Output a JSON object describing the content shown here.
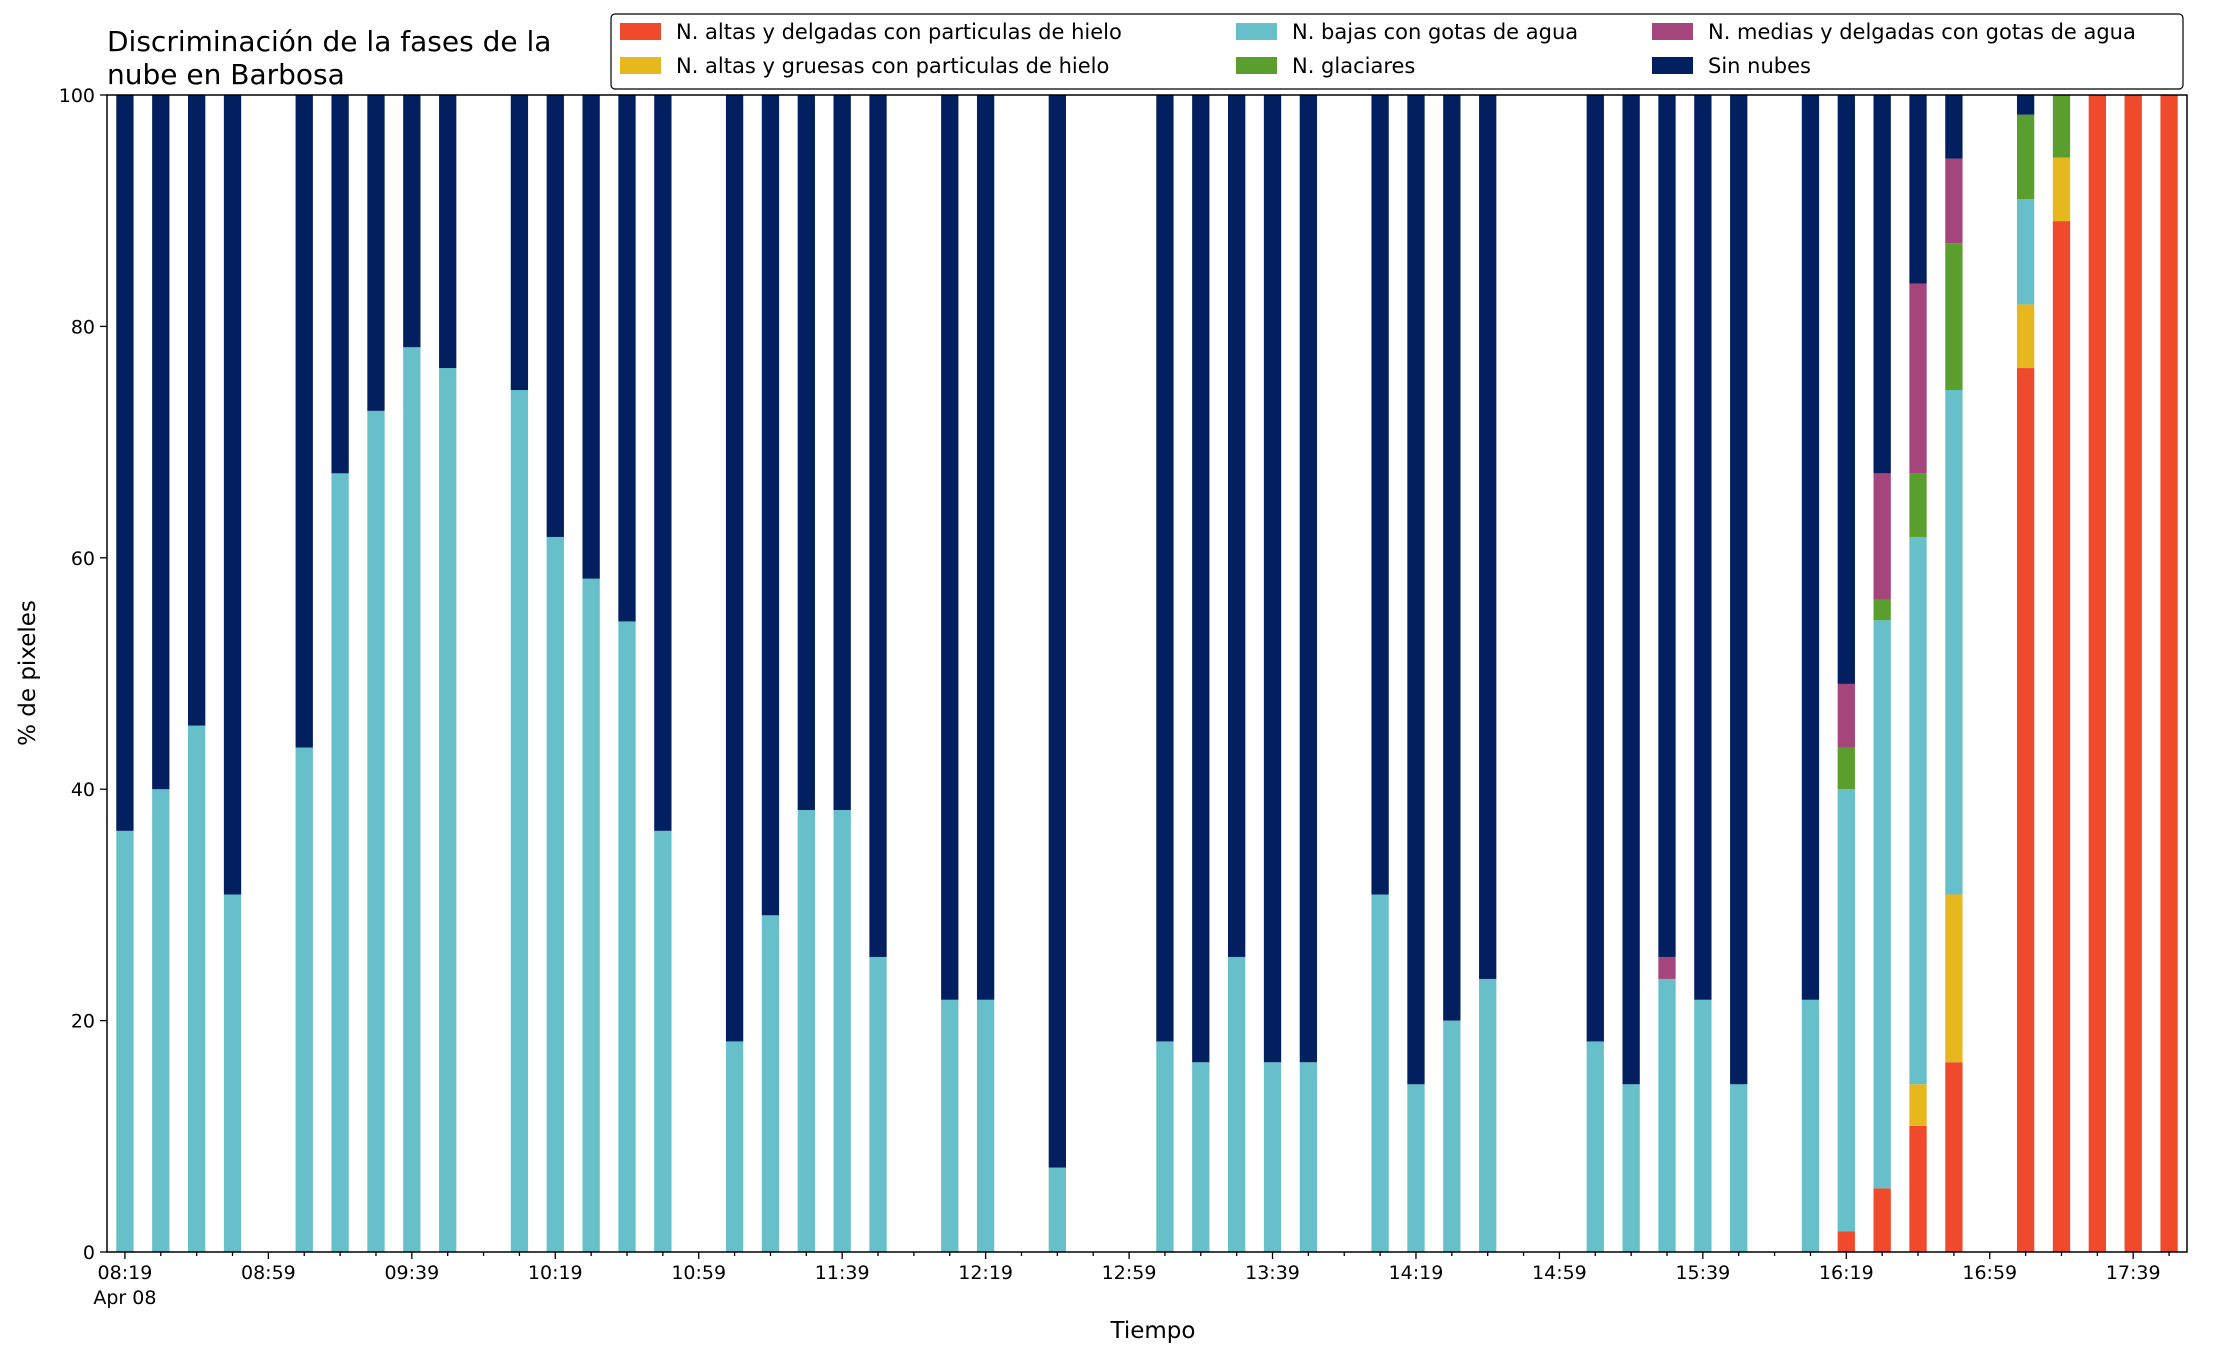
{
  "chart_data": {
    "type": "bar",
    "stacked": true,
    "title_lines": [
      "Discriminación de la fases de la",
      "nube en Barbosa"
    ],
    "xlabel": "Tiempo",
    "ylabel": "% de pixeles",
    "ylim": [
      0,
      100
    ],
    "yticks": [
      0,
      20,
      40,
      60,
      80,
      100
    ],
    "x_range_minutes": [
      "08:14",
      "17:54"
    ],
    "xtick_labels": [
      "08:19",
      "08:59",
      "09:39",
      "10:19",
      "10:59",
      "11:39",
      "12:19",
      "12:59",
      "13:39",
      "14:19",
      "14:59",
      "15:39",
      "16:19",
      "16:59",
      "17:39"
    ],
    "xtick_sublabel": "Apr 08",
    "legend_placement": "top-right",
    "legend": [
      {
        "key": "high_thin_ice",
        "label": "N. altas y delgadas con particulas de hielo",
        "color": "#ee4a2b"
      },
      {
        "key": "high_thick_ice",
        "label": "N. altas y gruesas con particulas de hielo",
        "color": "#e6b81e"
      },
      {
        "key": "low_water",
        "label": "N. bajas con gotas de agua",
        "color": "#67bfca"
      },
      {
        "key": "glacial",
        "label": "N. glaciares",
        "color": "#5a9f2d"
      },
      {
        "key": "mid_thin_water",
        "label": "N. medias y delgadas con gotas de agua",
        "color": "#a4467b"
      },
      {
        "key": "clear",
        "label": "Sin nubes",
        "color": "#021f60"
      }
    ],
    "stack_order": [
      "high_thin_ice",
      "high_thick_ice",
      "low_water",
      "glacial",
      "mid_thin_water",
      "clear"
    ],
    "bars": [
      {
        "t": "08:19",
        "low_water": 36.4,
        "clear": 63.6
      },
      {
        "t": "08:29",
        "low_water": 40.0,
        "clear": 60.0
      },
      {
        "t": "08:39",
        "low_water": 45.5,
        "clear": 54.5
      },
      {
        "t": "08:49",
        "low_water": 30.9,
        "clear": 69.1
      },
      {
        "t": "09:09",
        "low_water": 43.6,
        "clear": 56.4
      },
      {
        "t": "09:19",
        "low_water": 67.3,
        "clear": 32.7
      },
      {
        "t": "09:29",
        "low_water": 72.7,
        "clear": 27.3
      },
      {
        "t": "09:39",
        "low_water": 78.2,
        "clear": 21.8
      },
      {
        "t": "09:49",
        "low_water": 76.4,
        "clear": 23.6
      },
      {
        "t": "10:09",
        "low_water": 74.5,
        "clear": 25.5
      },
      {
        "t": "10:19",
        "low_water": 61.8,
        "clear": 38.2
      },
      {
        "t": "10:29",
        "low_water": 58.2,
        "clear": 41.8
      },
      {
        "t": "10:39",
        "low_water": 54.5,
        "clear": 45.5
      },
      {
        "t": "10:49",
        "low_water": 36.4,
        "clear": 63.6
      },
      {
        "t": "11:09",
        "low_water": 18.2,
        "clear": 81.8
      },
      {
        "t": "11:19",
        "low_water": 29.1,
        "clear": 70.9
      },
      {
        "t": "11:29",
        "low_water": 38.2,
        "clear": 61.8
      },
      {
        "t": "11:39",
        "low_water": 38.2,
        "clear": 61.8
      },
      {
        "t": "11:49",
        "low_water": 25.5,
        "clear": 74.5
      },
      {
        "t": "12:09",
        "low_water": 21.8,
        "clear": 78.2
      },
      {
        "t": "12:19",
        "low_water": 21.8,
        "clear": 78.2
      },
      {
        "t": "12:39",
        "low_water": 7.3,
        "clear": 92.7
      },
      {
        "t": "13:09",
        "low_water": 18.2,
        "clear": 81.8
      },
      {
        "t": "13:19",
        "low_water": 16.4,
        "clear": 83.6
      },
      {
        "t": "13:29",
        "low_water": 25.5,
        "clear": 74.5
      },
      {
        "t": "13:39",
        "low_water": 16.4,
        "clear": 83.6
      },
      {
        "t": "13:49",
        "low_water": 16.4,
        "clear": 83.6
      },
      {
        "t": "14:09",
        "low_water": 30.9,
        "clear": 69.1
      },
      {
        "t": "14:19",
        "low_water": 14.5,
        "clear": 85.5
      },
      {
        "t": "14:29",
        "low_water": 20.0,
        "clear": 80.0
      },
      {
        "t": "14:39",
        "low_water": 23.6,
        "clear": 76.4
      },
      {
        "t": "15:09",
        "low_water": 18.2,
        "clear": 81.8
      },
      {
        "t": "15:19",
        "low_water": 14.5,
        "clear": 85.5
      },
      {
        "t": "15:29",
        "low_water": 23.6,
        "mid_thin_water": 1.9,
        "clear": 74.5
      },
      {
        "t": "15:39",
        "low_water": 21.8,
        "clear": 78.2
      },
      {
        "t": "15:49",
        "low_water": 14.5,
        "clear": 85.5
      },
      {
        "t": "16:09",
        "low_water": 21.8,
        "clear": 78.2
      },
      {
        "t": "16:19",
        "high_thin_ice": 1.8,
        "low_water": 38.2,
        "glacial": 3.6,
        "mid_thin_water": 5.5,
        "clear": 50.9
      },
      {
        "t": "16:29",
        "high_thin_ice": 5.5,
        "low_water": 49.1,
        "glacial": 1.8,
        "mid_thin_water": 10.9,
        "clear": 32.7
      },
      {
        "t": "16:39",
        "high_thin_ice": 10.9,
        "high_thick_ice": 3.6,
        "low_water": 47.3,
        "glacial": 5.5,
        "mid_thin_water": 16.4,
        "clear": 16.3
      },
      {
        "t": "16:49",
        "high_thin_ice": 16.4,
        "high_thick_ice": 14.5,
        "low_water": 43.6,
        "glacial": 12.7,
        "mid_thin_water": 7.3,
        "clear": 5.5
      },
      {
        "t": "17:09",
        "high_thin_ice": 76.4,
        "high_thick_ice": 5.5,
        "low_water": 9.1,
        "glacial": 7.3,
        "clear": 1.7
      },
      {
        "t": "17:19",
        "high_thin_ice": 89.1,
        "high_thick_ice": 5.5,
        "glacial": 5.4
      },
      {
        "t": "17:29",
        "high_thin_ice": 100
      },
      {
        "t": "17:39",
        "high_thin_ice": 100
      },
      {
        "t": "17:49",
        "high_thin_ice": 100
      }
    ]
  }
}
